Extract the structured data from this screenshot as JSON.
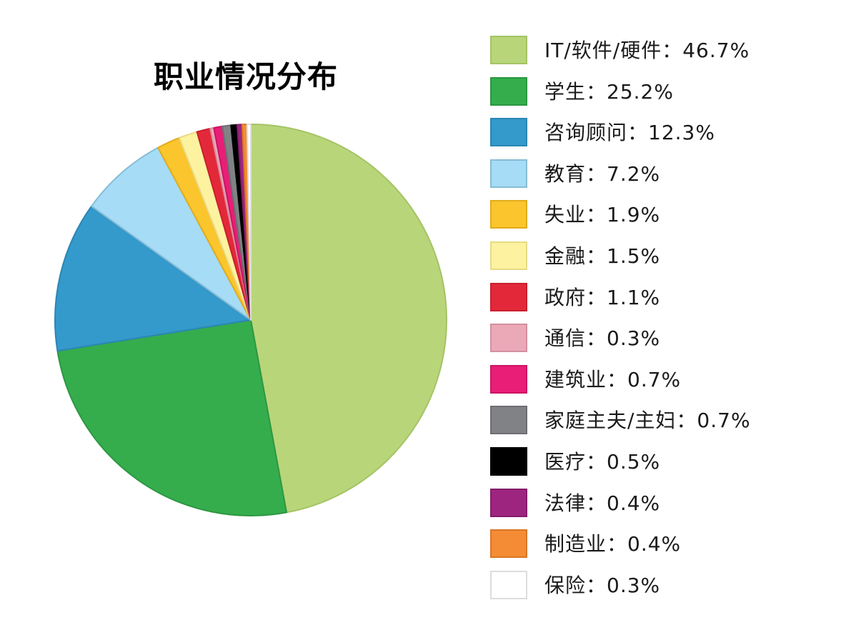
{
  "chart_data": {
    "type": "pie",
    "title": "职业情况分布",
    "legend_position": "right",
    "separator": "：",
    "slices": [
      {
        "label": "IT/软件/硬件",
        "value": 46.7,
        "display": "46.7%",
        "color": "#b9d57a",
        "border": "#a3c464"
      },
      {
        "label": "学生",
        "value": 25.2,
        "display": "25.2%",
        "color": "#35ad4d",
        "border": "#2c9742"
      },
      {
        "label": "咨询顾问",
        "value": 12.3,
        "display": "12.3%",
        "color": "#3499cb",
        "border": "#2b86b3"
      },
      {
        "label": "教育",
        "value": 7.2,
        "display": "7.2%",
        "color": "#a6dcf5",
        "border": "#86bcd6"
      },
      {
        "label": "失业",
        "value": 1.9,
        "display": "1.9%",
        "color": "#fbc52d",
        "border": "#e0ac1c"
      },
      {
        "label": "金融",
        "value": 1.5,
        "display": "1.5%",
        "color": "#fcf29f",
        "border": "#e6da86"
      },
      {
        "label": "政府",
        "value": 1.1,
        "display": "1.1%",
        "color": "#e32939",
        "border": "#c91f2e"
      },
      {
        "label": "通信",
        "value": 0.3,
        "display": "0.3%",
        "color": "#eba9b8",
        "border": "#d48f9f"
      },
      {
        "label": "建筑业",
        "value": 0.7,
        "display": "0.7%",
        "color": "#e91e76",
        "border": "#cc1464"
      },
      {
        "label": "家庭主夫/主妇",
        "value": 0.7,
        "display": "0.7%",
        "color": "#808285",
        "border": "#6c6e71"
      },
      {
        "label": "医疗",
        "value": 0.5,
        "display": "0.5%",
        "color": "#000000",
        "border": "#000000"
      },
      {
        "label": "法律",
        "value": 0.4,
        "display": "0.4%",
        "color": "#9d2580",
        "border": "#851c6b"
      },
      {
        "label": "制造业",
        "value": 0.4,
        "display": "0.4%",
        "color": "#f38c35",
        "border": "#d97625"
      },
      {
        "label": "保险",
        "value": 0.3,
        "display": "0.3%",
        "color": "#ffffff",
        "border": "#dddddd"
      }
    ]
  }
}
